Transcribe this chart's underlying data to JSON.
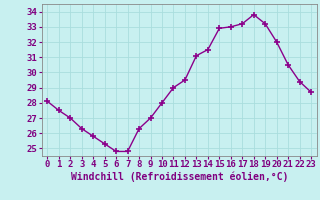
{
  "x": [
    0,
    1,
    2,
    3,
    4,
    5,
    6,
    7,
    8,
    9,
    10,
    11,
    12,
    13,
    14,
    15,
    16,
    17,
    18,
    19,
    20,
    21,
    22,
    23
  ],
  "y": [
    28.1,
    27.5,
    27.0,
    26.3,
    25.8,
    25.3,
    24.8,
    24.8,
    26.3,
    27.0,
    28.0,
    29.0,
    29.5,
    31.1,
    31.5,
    32.9,
    33.0,
    33.2,
    33.8,
    33.2,
    32.0,
    30.5,
    29.4,
    28.7
  ],
  "line_color": "#8B008B",
  "marker": "+",
  "marker_size": 4,
  "marker_lw": 1.2,
  "bg_color": "#c8f0f0",
  "grid_color": "#aadddd",
  "xlabel": "Windchill (Refroidissement éolien,°C)",
  "xlim": [
    -0.5,
    23.5
  ],
  "ylim": [
    24.5,
    34.5
  ],
  "yticks": [
    25,
    26,
    27,
    28,
    29,
    30,
    31,
    32,
    33,
    34
  ],
  "xticks": [
    0,
    1,
    2,
    3,
    4,
    5,
    6,
    7,
    8,
    9,
    10,
    11,
    12,
    13,
    14,
    15,
    16,
    17,
    18,
    19,
    20,
    21,
    22,
    23
  ],
  "xlabel_fontsize": 7,
  "tick_fontsize": 6.5,
  "line_width": 1.0,
  "label_color": "#800080"
}
